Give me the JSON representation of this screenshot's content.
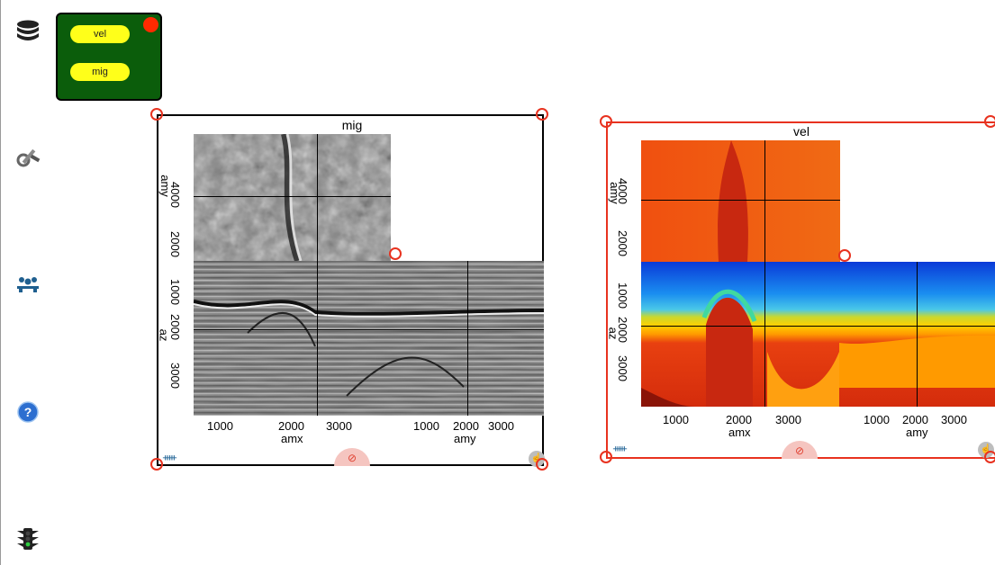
{
  "sidebar": {
    "icons": [
      "database-icon",
      "settings-tools-icon",
      "users-group-icon",
      "help-icon",
      "traffic-light-icon"
    ]
  },
  "palette": {
    "items": [
      {
        "label": "vel"
      },
      {
        "label": "mig"
      }
    ]
  },
  "panels": {
    "mig": {
      "title": "mig",
      "left_label_top": "amy",
      "left_label_bottom": "az",
      "amy_ticks": [
        "4000",
        "2000"
      ],
      "az_ticks": [
        "1000",
        "2000",
        "3000"
      ],
      "bottom_ticks_amx": [
        "1000",
        "2000",
        "3000"
      ],
      "bottom_ticks_amy": [
        "1000",
        "2000",
        "3000"
      ],
      "xlabel_left": "amx",
      "xlabel_right": "amy",
      "footer_symbol": "⊘"
    },
    "vel": {
      "title": "vel",
      "left_label_top": "amy",
      "left_label_bottom": "az",
      "amy_ticks": [
        "4000",
        "2000"
      ],
      "az_ticks": [
        "1000",
        "2000",
        "3000"
      ],
      "bottom_ticks_amx": [
        "1000",
        "2000",
        "3000"
      ],
      "bottom_ticks_amy": [
        "1000",
        "2000",
        "3000"
      ],
      "xlabel_left": "amx",
      "xlabel_right": "amy",
      "footer_symbol": "⊘"
    }
  },
  "colors": {
    "palette_bg": "#0b5d0b",
    "pill": "#ffff1a",
    "handle": "#e8321f",
    "selected_border": "#e8321f"
  }
}
